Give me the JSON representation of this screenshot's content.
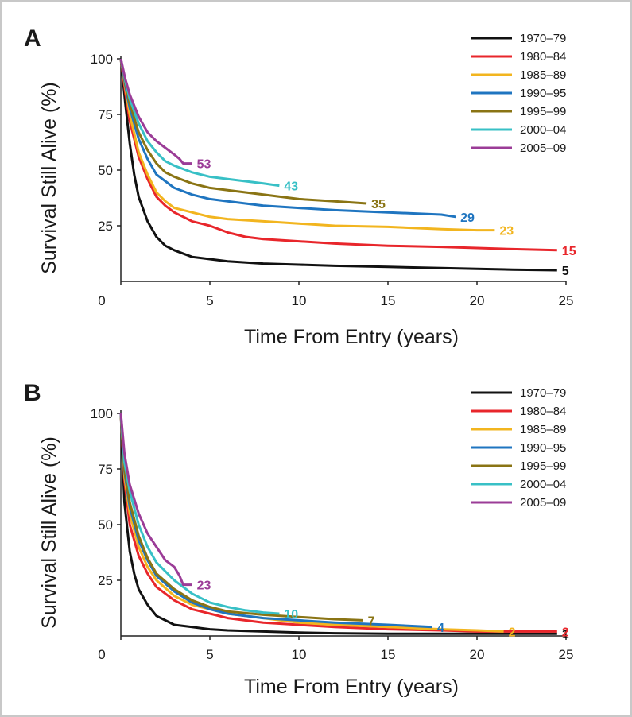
{
  "chart_data": [
    {
      "type": "line",
      "panel": "A",
      "xlabel": "Time From Entry (years)",
      "ylabel": "Survival Still Alive (%)",
      "xlim": [
        0,
        25
      ],
      "ylim": [
        0,
        100
      ],
      "xticks": [
        "0",
        "5",
        "10",
        "15",
        "20",
        "25"
      ],
      "yticks": [
        "25",
        "50",
        "75",
        "100"
      ],
      "legend_position": "top-right",
      "series": [
        {
          "name": "1970–79",
          "color": "#111111",
          "end_label": "5",
          "x": [
            0,
            0.25,
            0.5,
            0.75,
            1,
            1.5,
            2,
            2.5,
            3,
            4,
            5,
            6,
            8,
            10,
            12,
            15,
            18,
            20,
            22,
            24.5
          ],
          "y": [
            100,
            80,
            62,
            48,
            38,
            27,
            20,
            16,
            14,
            11,
            10,
            9,
            8,
            7.5,
            7,
            6.5,
            6,
            5.6,
            5.3,
            5
          ]
        },
        {
          "name": "1980–84",
          "color": "#e8262b",
          "end_label": "15",
          "x": [
            0,
            0.25,
            0.5,
            1,
            1.5,
            2,
            2.5,
            3,
            3.5,
            4,
            5,
            6,
            7,
            8,
            10,
            12,
            15,
            18,
            20,
            22,
            24.5
          ],
          "y": [
            100,
            85,
            72,
            56,
            46,
            38,
            34,
            31,
            29,
            27,
            25,
            22,
            20,
            19,
            18,
            17,
            16,
            15.5,
            15,
            14.5,
            14
          ]
        },
        {
          "name": "1985–89",
          "color": "#f2b51f",
          "end_label": "23",
          "x": [
            0,
            0.25,
            0.5,
            1,
            1.5,
            2,
            2.5,
            3,
            4,
            5,
            6,
            8,
            10,
            12,
            15,
            18,
            20,
            21
          ],
          "y": [
            100,
            87,
            75,
            58,
            48,
            40,
            36,
            33,
            31,
            29,
            28,
            27,
            26,
            25,
            24.5,
            23.5,
            23,
            23
          ]
        },
        {
          "name": "1990–95",
          "color": "#1f75c0",
          "end_label": "29",
          "x": [
            0,
            0.25,
            0.5,
            1,
            1.5,
            2,
            2.5,
            3,
            4,
            5,
            6,
            8,
            10,
            12,
            15,
            18,
            18.8
          ],
          "y": [
            100,
            88,
            78,
            64,
            55,
            48,
            45,
            42,
            39,
            37,
            36,
            34,
            33,
            32,
            31,
            30,
            29
          ]
        },
        {
          "name": "1995–99",
          "color": "#8a7414",
          "end_label": "35",
          "x": [
            0,
            0.25,
            0.5,
            1,
            1.5,
            2,
            2.5,
            3,
            4,
            5,
            6,
            8,
            10,
            12,
            13.8
          ],
          "y": [
            100,
            89,
            80,
            67,
            59,
            53,
            49,
            47,
            44,
            42,
            41,
            39,
            37,
            36,
            35
          ]
        },
        {
          "name": "2000–04",
          "color": "#38c0c6",
          "end_label": "43",
          "x": [
            0,
            0.25,
            0.5,
            1,
            1.5,
            2,
            2.5,
            3,
            4,
            5,
            6,
            7,
            8,
            8.9
          ],
          "y": [
            100,
            90,
            82,
            71,
            63,
            58,
            54,
            52,
            49,
            47,
            46,
            45,
            44,
            43
          ]
        },
        {
          "name": "2005–09",
          "color": "#9b3c97",
          "end_label": "53",
          "x": [
            0,
            0.25,
            0.5,
            1,
            1.5,
            2,
            2.5,
            3,
            3.3,
            3.5,
            4
          ],
          "y": [
            100,
            91,
            84,
            74,
            67,
            63,
            60,
            57,
            55,
            53,
            53
          ]
        }
      ]
    },
    {
      "type": "line",
      "panel": "B",
      "xlabel": "Time From Entry (years)",
      "ylabel": "Survival Still Alive (%)",
      "xlim": [
        0,
        25
      ],
      "ylim": [
        0,
        100
      ],
      "xticks": [
        "0",
        "5",
        "10",
        "15",
        "20",
        "25"
      ],
      "yticks": [
        "25",
        "50",
        "75",
        "100"
      ],
      "legend_position": "top-right",
      "series": [
        {
          "name": "1970–79",
          "color": "#111111",
          "end_label": "1",
          "x": [
            0,
            0.2,
            0.5,
            0.75,
            1,
            1.5,
            2,
            2.5,
            3,
            4,
            5,
            6,
            8,
            10,
            12,
            15,
            20,
            24.5
          ],
          "y": [
            100,
            60,
            38,
            28,
            21,
            14,
            9,
            7,
            5,
            4,
            3,
            2.5,
            2,
            1.5,
            1.2,
            1,
            1,
            1
          ]
        },
        {
          "name": "1980–84",
          "color": "#e8262b",
          "end_label": "2",
          "x": [
            0,
            0.2,
            0.5,
            1,
            1.5,
            2,
            3,
            4,
            5,
            6,
            8,
            10,
            12,
            15,
            18,
            20,
            22,
            24.5
          ],
          "y": [
            100,
            70,
            50,
            36,
            28,
            22,
            16,
            12,
            10,
            8,
            6,
            5,
            4,
            3,
            2.5,
            2,
            2,
            2
          ]
        },
        {
          "name": "1985–89",
          "color": "#f2b51f",
          "end_label": "2",
          "x": [
            0,
            0.2,
            0.5,
            1,
            1.5,
            2,
            3,
            4,
            5,
            6,
            8,
            10,
            12,
            15,
            18,
            20,
            21.5
          ],
          "y": [
            100,
            72,
            55,
            40,
            31,
            25,
            18,
            14,
            12,
            10,
            8,
            6,
            5,
            4,
            3,
            2.5,
            2
          ]
        },
        {
          "name": "1990–95",
          "color": "#1f75c0",
          "end_label": "4",
          "x": [
            0,
            0.2,
            0.5,
            1,
            1.5,
            2,
            3,
            4,
            5,
            6,
            8,
            10,
            12,
            15,
            17.5
          ],
          "y": [
            100,
            74,
            58,
            43,
            34,
            27,
            20,
            15,
            12,
            10,
            8,
            7,
            6,
            5,
            4
          ]
        },
        {
          "name": "1995–99",
          "color": "#8a7414",
          "end_label": "7",
          "x": [
            0,
            0.2,
            0.5,
            1,
            1.5,
            2,
            3,
            4,
            5,
            6,
            8,
            10,
            12,
            13.6
          ],
          "y": [
            100,
            75,
            60,
            45,
            35,
            28,
            21,
            16,
            13,
            11,
            9.5,
            8.5,
            7.5,
            7
          ]
        },
        {
          "name": "2000–04",
          "color": "#38c0c6",
          "end_label": "10",
          "x": [
            0,
            0.2,
            0.5,
            1,
            1.5,
            2,
            3,
            4,
            5,
            6,
            7,
            8,
            8.9
          ],
          "y": [
            100,
            78,
            65,
            50,
            40,
            33,
            25,
            19,
            15,
            13,
            11.5,
            10.5,
            10
          ]
        },
        {
          "name": "2005–09",
          "color": "#9b3c97",
          "end_label": "23",
          "x": [
            0,
            0.2,
            0.5,
            1,
            1.5,
            2,
            2.5,
            3,
            3.3,
            3.5,
            4
          ],
          "y": [
            100,
            82,
            68,
            55,
            46,
            40,
            34,
            31,
            27,
            23,
            23
          ]
        }
      ]
    }
  ]
}
